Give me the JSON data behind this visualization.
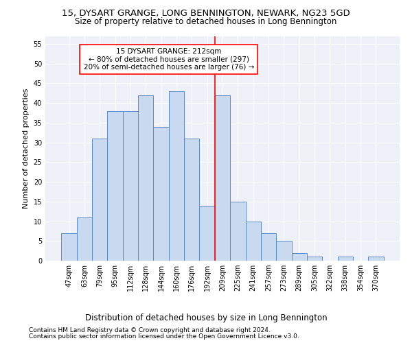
{
  "title": "15, DYSART GRANGE, LONG BENNINGTON, NEWARK, NG23 5GD",
  "subtitle": "Size of property relative to detached houses in Long Bennington",
  "xlabel": "Distribution of detached houses by size in Long Bennington",
  "ylabel": "Number of detached properties",
  "categories": [
    "47sqm",
    "63sqm",
    "79sqm",
    "95sqm",
    "112sqm",
    "128sqm",
    "144sqm",
    "160sqm",
    "176sqm",
    "192sqm",
    "209sqm",
    "225sqm",
    "241sqm",
    "257sqm",
    "273sqm",
    "289sqm",
    "305sqm",
    "322sqm",
    "338sqm",
    "354sqm",
    "370sqm"
  ],
  "values": [
    7,
    11,
    31,
    38,
    38,
    42,
    34,
    43,
    31,
    14,
    42,
    15,
    10,
    7,
    5,
    2,
    1,
    0,
    1,
    0,
    1
  ],
  "bar_color": "#c9d9ef",
  "bar_edge_color": "#5a8ac6",
  "marker_bin_index": 10,
  "annotation_text": "15 DYSART GRANGE: 212sqm\n← 80% of detached houses are smaller (297)\n20% of semi-detached houses are larger (76) →",
  "annotation_box_color": "white",
  "annotation_box_edge_color": "red",
  "vline_color": "red",
  "ylim": [
    0,
    57
  ],
  "yticks": [
    0,
    5,
    10,
    15,
    20,
    25,
    30,
    35,
    40,
    45,
    50,
    55
  ],
  "bg_color": "#eef2f8",
  "grid_color": "white",
  "footer1": "Contains HM Land Registry data © Crown copyright and database right 2024.",
  "footer2": "Contains public sector information licensed under the Open Government Licence v3.0.",
  "title_fontsize": 9.5,
  "subtitle_fontsize": 8.5,
  "xlabel_fontsize": 8.5,
  "ylabel_fontsize": 8,
  "tick_fontsize": 7,
  "annotation_fontsize": 7.5,
  "footer_fontsize": 6.5
}
